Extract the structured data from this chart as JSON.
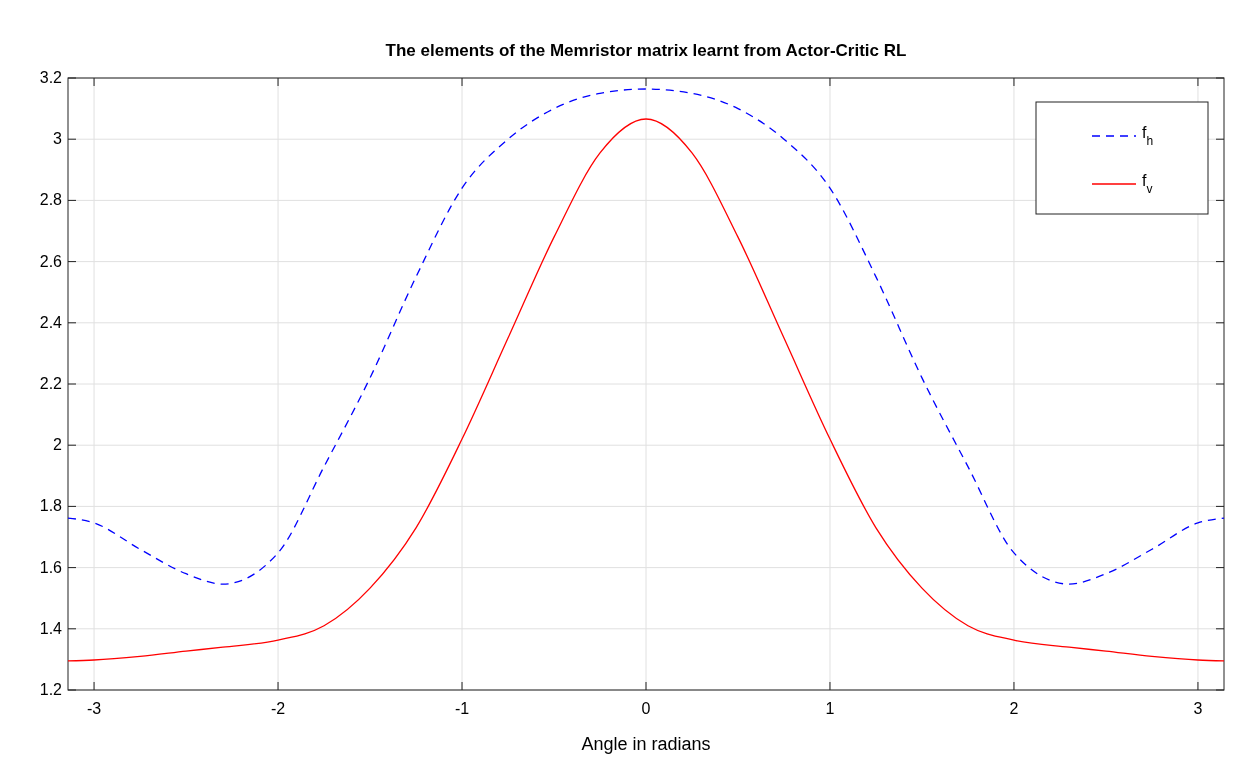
{
  "chart_data": {
    "type": "line",
    "title": "The elements of the Memristor matrix learnt from Actor-Critic RL",
    "xlabel": "Angle in radians",
    "xlim": [
      -3.1416,
      3.1416
    ],
    "xticks": [
      -3,
      -2,
      -1,
      0,
      1,
      2,
      3
    ],
    "ylim": [
      1.2,
      3.2
    ],
    "yticks": [
      1.2,
      1.4,
      1.6,
      1.8,
      2,
      2.2,
      2.4,
      2.6,
      2.8,
      3,
      3.2
    ],
    "grid": true,
    "legend": "top right",
    "x": [
      -3.1416,
      -3,
      -2.75,
      -2.5,
      -2.3,
      -2,
      -1.75,
      -1.5,
      -1.25,
      -1,
      -0.75,
      -0.5,
      -0.25,
      0,
      0.25,
      0.5,
      0.75,
      1,
      1.25,
      1.5,
      1.75,
      2,
      2.3,
      2.5,
      2.75,
      3,
      3.1416
    ],
    "series": [
      {
        "name": "f$_{h}$",
        "color": "#0000ff",
        "line_style": "dashed",
        "values": [
          1.762,
          1.746,
          1.66,
          1.58,
          1.546,
          1.648,
          1.93,
          2.22,
          2.55,
          2.84,
          3.0,
          3.1,
          3.15,
          3.164,
          3.15,
          3.1,
          3.0,
          2.84,
          2.55,
          2.22,
          1.93,
          1.648,
          1.546,
          1.58,
          1.66,
          1.746,
          1.762
        ]
      },
      {
        "name": "f$_{v}$",
        "color": "#ff0000",
        "line_style": "solid",
        "values": [
          1.295,
          1.298,
          1.31,
          1.327,
          1.34,
          1.363,
          1.41,
          1.533,
          1.73,
          2.02,
          2.35,
          2.68,
          2.955,
          3.066,
          2.955,
          2.68,
          2.35,
          2.02,
          1.73,
          1.533,
          1.41,
          1.363,
          1.34,
          1.327,
          1.31,
          1.298,
          1.295
        ]
      }
    ]
  }
}
